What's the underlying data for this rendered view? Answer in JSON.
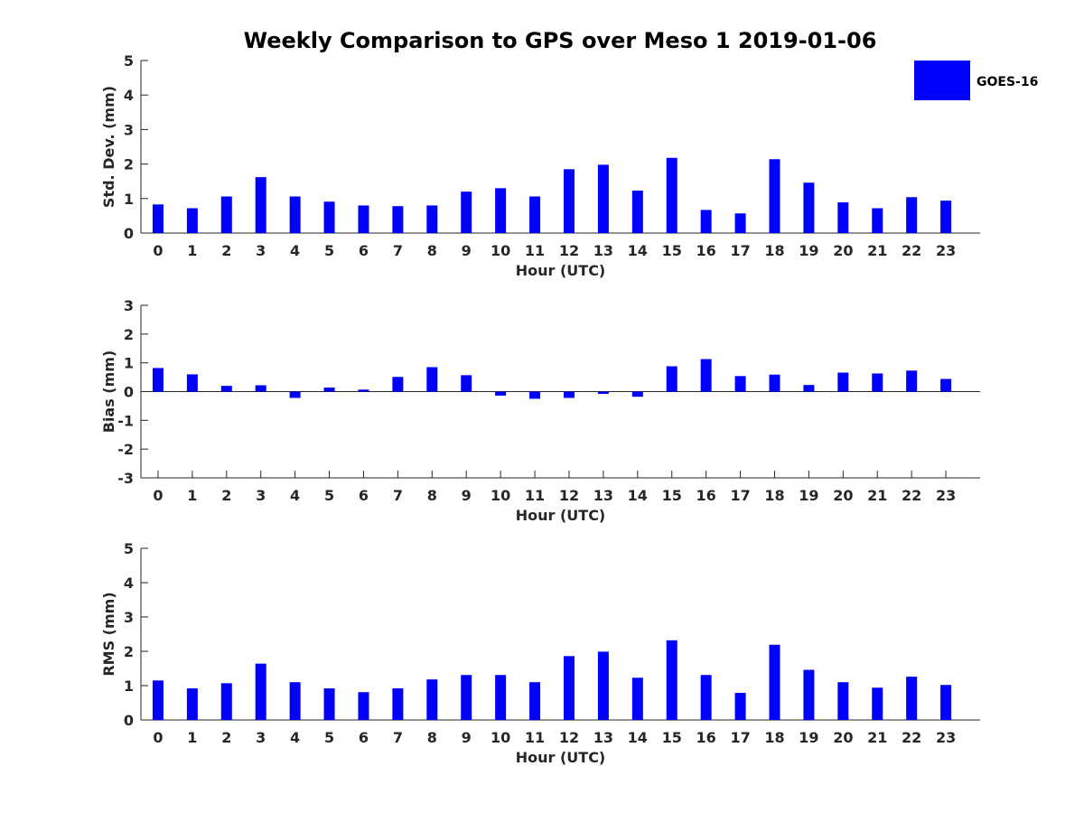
{
  "title": "Weekly Comparison to GPS over Meso 1 2019-01-06",
  "legend": {
    "label": "GOES-16",
    "color": "#0000ff"
  },
  "chart_data": [
    {
      "type": "bar",
      "title": "",
      "xlabel": "Hour (UTC)",
      "ylabel": "Std. Dev. (mm)",
      "ylim": [
        0,
        5
      ],
      "yticks": [
        0,
        1,
        2,
        3,
        4,
        5
      ],
      "categories": [
        "0",
        "1",
        "2",
        "3",
        "4",
        "5",
        "6",
        "7",
        "8",
        "9",
        "10",
        "11",
        "12",
        "13",
        "14",
        "15",
        "16",
        "17",
        "18",
        "19",
        "20",
        "21",
        "22",
        "23"
      ],
      "series": [
        {
          "name": "GOES-16",
          "values": [
            0.83,
            0.72,
            1.06,
            1.62,
            1.06,
            0.91,
            0.8,
            0.78,
            0.8,
            1.2,
            1.3,
            1.06,
            1.85,
            1.98,
            1.23,
            2.18,
            0.67,
            0.57,
            2.14,
            1.46,
            0.89,
            0.72,
            1.04,
            0.94
          ]
        }
      ]
    },
    {
      "type": "bar",
      "title": "",
      "xlabel": "Hour (UTC)",
      "ylabel": "Bias (mm)",
      "ylim": [
        -3,
        3
      ],
      "yticks": [
        -3,
        -2,
        -1,
        0,
        1,
        2,
        3
      ],
      "categories": [
        "0",
        "1",
        "2",
        "3",
        "4",
        "5",
        "6",
        "7",
        "8",
        "9",
        "10",
        "11",
        "12",
        "13",
        "14",
        "15",
        "16",
        "17",
        "18",
        "19",
        "20",
        "21",
        "22",
        "23"
      ],
      "series": [
        {
          "name": "GOES-16",
          "values": [
            0.82,
            0.6,
            0.2,
            0.22,
            -0.22,
            0.14,
            0.07,
            0.51,
            0.85,
            0.57,
            -0.14,
            -0.25,
            -0.22,
            -0.08,
            -0.18,
            0.88,
            1.13,
            0.54,
            0.59,
            0.23,
            0.66,
            0.63,
            0.73,
            0.44
          ]
        }
      ]
    },
    {
      "type": "bar",
      "title": "",
      "xlabel": "Hour (UTC)",
      "ylabel": "RMS (mm)",
      "ylim": [
        0,
        5
      ],
      "yticks": [
        0,
        1,
        2,
        3,
        4,
        5
      ],
      "categories": [
        "0",
        "1",
        "2",
        "3",
        "4",
        "5",
        "6",
        "7",
        "8",
        "9",
        "10",
        "11",
        "12",
        "13",
        "14",
        "15",
        "16",
        "17",
        "18",
        "19",
        "20",
        "21",
        "22",
        "23"
      ],
      "series": [
        {
          "name": "GOES-16",
          "values": [
            1.15,
            0.92,
            1.07,
            1.64,
            1.1,
            0.92,
            0.81,
            0.92,
            1.18,
            1.31,
            1.31,
            1.1,
            1.86,
            1.99,
            1.23,
            2.32,
            1.31,
            0.79,
            2.19,
            1.46,
            1.1,
            0.94,
            1.26,
            1.02
          ]
        }
      ]
    }
  ]
}
